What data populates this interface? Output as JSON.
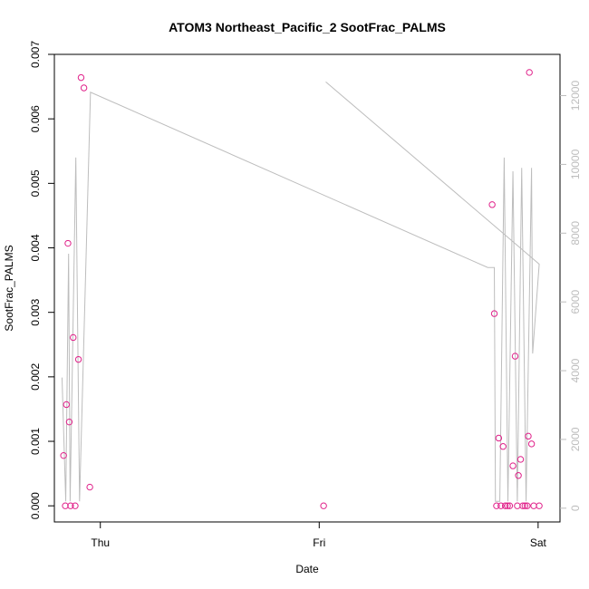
{
  "chart_data": {
    "type": "scatter",
    "title": "ATOM3 Northeast_Pacific_2 SootFrac_PALMS",
    "xlabel": "Date",
    "ylabel": "SootFrac_PALMS",
    "x_tick_labels": [
      "Thu",
      "Fri",
      "Sat"
    ],
    "x_ticks": [
      0,
      1,
      2
    ],
    "xlim": [
      -0.21,
      2.1
    ],
    "ylim": [
      -0.00025,
      0.007
    ],
    "y_ticks": [
      0.0,
      0.001,
      0.002,
      0.003,
      0.004,
      0.005,
      0.006,
      0.007
    ],
    "y_tick_labels": [
      "0.000",
      "0.001",
      "0.002",
      "0.003",
      "0.004",
      "0.005",
      "0.006",
      "0.007"
    ],
    "y2lim": [
      -400,
      13200
    ],
    "y2_ticks": [
      0,
      2000,
      4000,
      6000,
      8000,
      10000,
      12000
    ],
    "y2_tick_labels": [
      "0",
      "2000",
      "4000",
      "6000",
      "8000",
      "10000",
      "12000"
    ],
    "grid": false,
    "series": [
      {
        "kind": "points",
        "color": "#e0218a",
        "points": [
          [
            -0.168,
            0.00078
          ],
          [
            -0.16,
            0.0
          ],
          [
            -0.155,
            0.00157
          ],
          [
            -0.148,
            0.00407
          ],
          [
            -0.142,
            0.0013
          ],
          [
            -0.136,
            0.0
          ],
          [
            -0.124,
            0.00261
          ],
          [
            -0.115,
            0.0
          ],
          [
            -0.1,
            0.00227
          ],
          [
            -0.088,
            0.00664
          ],
          [
            -0.075,
            0.00648
          ],
          [
            -0.048,
            0.00029
          ],
          [
            1.02,
            0.0
          ],
          [
            1.79,
            0.00467
          ],
          [
            1.8,
            0.00298
          ],
          [
            1.81,
            0.0
          ],
          [
            1.82,
            0.00105
          ],
          [
            1.83,
            0.0
          ],
          [
            1.84,
            0.00092
          ],
          [
            1.85,
            0.0
          ],
          [
            1.86,
            0.0
          ],
          [
            1.87,
            0.0
          ],
          [
            1.885,
            0.00062
          ],
          [
            1.895,
            0.00232
          ],
          [
            1.905,
            0.0
          ],
          [
            1.91,
            0.00047
          ],
          [
            1.92,
            0.00072
          ],
          [
            1.93,
            0.0
          ],
          [
            1.94,
            0.0
          ],
          [
            1.95,
            0.0
          ],
          [
            1.955,
            0.00108
          ],
          [
            1.96,
            0.00672
          ],
          [
            1.97,
            0.00096
          ],
          [
            1.98,
            0.0
          ],
          [
            2.005,
            0.0
          ]
        ]
      },
      {
        "kind": "line",
        "axis": "right",
        "color": "#bdbdbd",
        "points": [
          [
            -0.175,
            3800
          ],
          [
            -0.158,
            200
          ],
          [
            -0.145,
            7400
          ],
          [
            -0.138,
            200
          ],
          [
            -0.112,
            10200
          ],
          [
            -0.095,
            200
          ],
          [
            -0.045,
            12100
          ],
          [
            1.77,
            7000
          ],
          [
            1.8,
            7000
          ],
          [
            1.805,
            200
          ],
          [
            1.825,
            200
          ],
          [
            1.845,
            10200
          ],
          [
            1.862,
            200
          ],
          [
            1.885,
            9800
          ],
          [
            1.905,
            200
          ],
          [
            1.925,
            9900
          ],
          [
            1.945,
            200
          ],
          [
            1.97,
            9900
          ],
          [
            1.975,
            4500
          ],
          [
            2.005,
            7100
          ],
          [
            1.03,
            12400
          ]
        ]
      }
    ]
  }
}
